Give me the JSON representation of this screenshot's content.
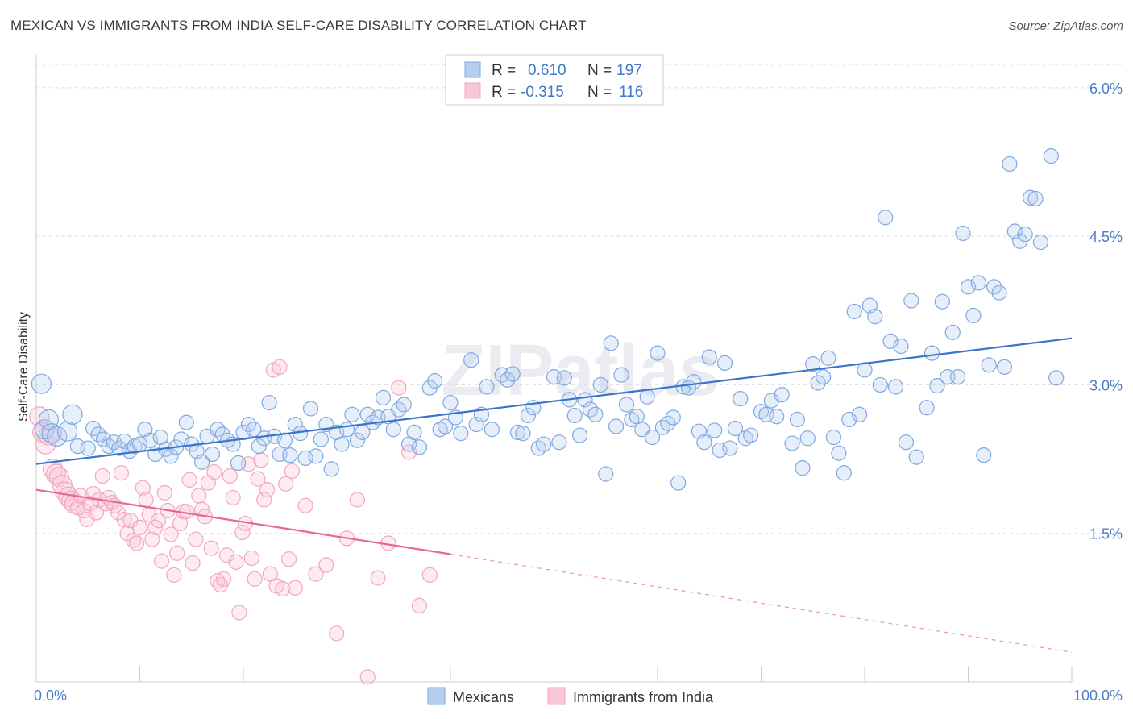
{
  "title": "MEXICAN VS IMMIGRANTS FROM INDIA SELF-CARE DISABILITY CORRELATION CHART",
  "source": "Source: ZipAtlas.com",
  "watermark": "ZIPatlas",
  "chart_data": {
    "type": "scatter",
    "title": "MEXICAN VS IMMIGRANTS FROM INDIA SELF-CARE DISABILITY CORRELATION CHART",
    "xlabel": "",
    "ylabel": "Self-Care Disability",
    "xlim": [
      0,
      100
    ],
    "ylim": [
      0,
      6.3
    ],
    "x_tick_labels": [
      "0.0%",
      "100.0%"
    ],
    "y_ticks": [
      1.5,
      3.0,
      4.5,
      6.0
    ],
    "y_tick_labels": [
      "1.5%",
      "3.0%",
      "4.5%",
      "6.0%"
    ],
    "grid": true,
    "legend_stats": [
      {
        "r_label": "R =",
        "r_value": "0.610",
        "n_label": "N =",
        "n_value": "197"
      },
      {
        "r_label": "R =",
        "r_value": "-0.315",
        "n_label": "N =",
        "n_value": "116"
      }
    ],
    "series": [
      {
        "name": "Mexicans",
        "color": "#7fa8e0",
        "line_color": "#3a74cc",
        "trend": {
          "x0": 0,
          "y0": 2.2,
          "x1": 100,
          "y1": 3.47
        },
        "points": [
          [
            0.5,
            3.01
          ],
          [
            0.8,
            2.55
          ],
          [
            1.2,
            2.65
          ],
          [
            1.5,
            2.51
          ],
          [
            2.0,
            2.48
          ],
          [
            3.0,
            2.53
          ],
          [
            3.5,
            2.7
          ],
          [
            4.0,
            2.38
          ],
          [
            5.0,
            2.36
          ],
          [
            5.5,
            2.56
          ],
          [
            6.0,
            2.5
          ],
          [
            6.5,
            2.45
          ],
          [
            7.0,
            2.38
          ],
          [
            7.5,
            2.42
          ],
          [
            8.0,
            2.36
          ],
          [
            8.5,
            2.43
          ],
          [
            9.0,
            2.33
          ],
          [
            9.5,
            2.38
          ],
          [
            10.0,
            2.4
          ],
          [
            10.5,
            2.55
          ],
          [
            11.0,
            2.44
          ],
          [
            11.5,
            2.3
          ],
          [
            12.0,
            2.47
          ],
          [
            12.5,
            2.35
          ],
          [
            13.0,
            2.28
          ],
          [
            13.5,
            2.37
          ],
          [
            14.0,
            2.45
          ],
          [
            14.5,
            2.62
          ],
          [
            15.0,
            2.4
          ],
          [
            15.5,
            2.33
          ],
          [
            16.0,
            2.22
          ],
          [
            16.5,
            2.48
          ],
          [
            17.0,
            2.3
          ],
          [
            17.5,
            2.55
          ],
          [
            18.0,
            2.5
          ],
          [
            18.5,
            2.44
          ],
          [
            19.0,
            2.4
          ],
          [
            19.5,
            2.21
          ],
          [
            20.0,
            2.52
          ],
          [
            20.5,
            2.6
          ],
          [
            21.0,
            2.55
          ],
          [
            21.5,
            2.38
          ],
          [
            22.0,
            2.46
          ],
          [
            22.5,
            2.82
          ],
          [
            23.0,
            2.48
          ],
          [
            23.5,
            2.3
          ],
          [
            24.0,
            2.44
          ],
          [
            24.5,
            2.29
          ],
          [
            25.0,
            2.6
          ],
          [
            25.5,
            2.51
          ],
          [
            26.0,
            2.26
          ],
          [
            26.5,
            2.76
          ],
          [
            27.0,
            2.28
          ],
          [
            27.5,
            2.45
          ],
          [
            28.0,
            2.6
          ],
          [
            28.5,
            2.15
          ],
          [
            29.0,
            2.52
          ],
          [
            29.5,
            2.4
          ],
          [
            30.0,
            2.55
          ],
          [
            30.5,
            2.7
          ],
          [
            31.0,
            2.44
          ],
          [
            31.5,
            2.52
          ],
          [
            32.0,
            2.7
          ],
          [
            32.5,
            2.62
          ],
          [
            33.0,
            2.67
          ],
          [
            33.5,
            2.87
          ],
          [
            34.0,
            2.68
          ],
          [
            34.5,
            2.55
          ],
          [
            35.0,
            2.75
          ],
          [
            35.5,
            2.8
          ],
          [
            36.0,
            2.4
          ],
          [
            36.5,
            2.52
          ],
          [
            37.0,
            2.37
          ],
          [
            38.0,
            2.97
          ],
          [
            38.5,
            3.04
          ],
          [
            39.0,
            2.55
          ],
          [
            39.5,
            2.58
          ],
          [
            40.0,
            2.82
          ],
          [
            40.5,
            2.67
          ],
          [
            41.0,
            2.51
          ],
          [
            42.0,
            3.25
          ],
          [
            42.5,
            2.6
          ],
          [
            43.0,
            2.7
          ],
          [
            43.5,
            2.98
          ],
          [
            44.0,
            2.55
          ],
          [
            45.0,
            3.1
          ],
          [
            45.5,
            3.05
          ],
          [
            46.0,
            3.11
          ],
          [
            46.5,
            2.52
          ],
          [
            47.0,
            2.51
          ],
          [
            47.5,
            2.69
          ],
          [
            48.0,
            2.77
          ],
          [
            48.5,
            2.36
          ],
          [
            49.0,
            2.4
          ],
          [
            50.0,
            3.08
          ],
          [
            50.5,
            2.42
          ],
          [
            51.0,
            3.07
          ],
          [
            51.5,
            2.85
          ],
          [
            52.0,
            2.69
          ],
          [
            52.5,
            2.49
          ],
          [
            53.0,
            2.85
          ],
          [
            53.5,
            2.75
          ],
          [
            54.0,
            2.7
          ],
          [
            54.5,
            3.0
          ],
          [
            55.0,
            2.1
          ],
          [
            55.5,
            3.42
          ],
          [
            56.0,
            2.58
          ],
          [
            56.5,
            3.1
          ],
          [
            57.0,
            2.8
          ],
          [
            57.5,
            2.65
          ],
          [
            58.0,
            2.68
          ],
          [
            58.5,
            2.55
          ],
          [
            59.0,
            2.88
          ],
          [
            59.5,
            2.47
          ],
          [
            60.0,
            3.32
          ],
          [
            60.5,
            2.57
          ],
          [
            61.0,
            2.61
          ],
          [
            61.5,
            2.67
          ],
          [
            62.0,
            2.01
          ],
          [
            62.5,
            2.98
          ],
          [
            63.0,
            2.97
          ],
          [
            63.5,
            3.03
          ],
          [
            64.0,
            2.53
          ],
          [
            64.5,
            2.42
          ],
          [
            65.0,
            3.28
          ],
          [
            65.5,
            2.54
          ],
          [
            66.0,
            2.34
          ],
          [
            66.5,
            3.22
          ],
          [
            67.0,
            2.36
          ],
          [
            67.5,
            2.56
          ],
          [
            68.0,
            2.86
          ],
          [
            68.5,
            2.46
          ],
          [
            69.0,
            2.49
          ],
          [
            70.0,
            2.73
          ],
          [
            70.5,
            2.7
          ],
          [
            71.0,
            2.84
          ],
          [
            71.5,
            2.68
          ],
          [
            72.0,
            2.9
          ],
          [
            73.0,
            2.41
          ],
          [
            73.5,
            2.65
          ],
          [
            74.0,
            2.16
          ],
          [
            74.5,
            2.46
          ],
          [
            75.0,
            3.21
          ],
          [
            75.5,
            3.02
          ],
          [
            76.0,
            3.08
          ],
          [
            76.5,
            3.27
          ],
          [
            77.0,
            2.47
          ],
          [
            77.5,
            2.31
          ],
          [
            78.0,
            2.11
          ],
          [
            78.5,
            2.65
          ],
          [
            79.0,
            3.74
          ],
          [
            79.5,
            2.7
          ],
          [
            80.0,
            3.15
          ],
          [
            80.5,
            3.8
          ],
          [
            81.0,
            3.69
          ],
          [
            81.5,
            3.0
          ],
          [
            82.0,
            4.69
          ],
          [
            82.5,
            3.44
          ],
          [
            83.0,
            2.98
          ],
          [
            83.5,
            3.39
          ],
          [
            84.0,
            2.42
          ],
          [
            84.5,
            3.85
          ],
          [
            85.0,
            2.27
          ],
          [
            86.0,
            2.77
          ],
          [
            86.5,
            3.32
          ],
          [
            87.0,
            2.99
          ],
          [
            87.5,
            3.84
          ],
          [
            88.0,
            3.08
          ],
          [
            88.5,
            3.53
          ],
          [
            89.0,
            3.08
          ],
          [
            89.5,
            4.53
          ],
          [
            90.0,
            3.99
          ],
          [
            90.5,
            3.7
          ],
          [
            91.0,
            4.03
          ],
          [
            91.5,
            2.29
          ],
          [
            92.0,
            3.2
          ],
          [
            92.5,
            3.99
          ],
          [
            93.0,
            3.93
          ],
          [
            93.5,
            3.18
          ],
          [
            94.0,
            5.23
          ],
          [
            94.5,
            4.55
          ],
          [
            95.0,
            4.45
          ],
          [
            95.5,
            4.52
          ],
          [
            96.0,
            4.89
          ],
          [
            96.5,
            4.88
          ],
          [
            97.0,
            4.44
          ],
          [
            98.0,
            5.31
          ],
          [
            98.5,
            3.07
          ]
        ]
      },
      {
        "name": "Immigrants from India",
        "color": "#f2a7bf",
        "line_color": "#e8679b",
        "trend": {
          "x0": 0,
          "y0": 1.94,
          "x1": 40,
          "y1": 1.29,
          "dash_x1": 100,
          "dash_y1": 0.3
        },
        "points": [
          [
            0.3,
            2.68
          ],
          [
            0.6,
            2.52
          ],
          [
            0.9,
            2.4
          ],
          [
            1.2,
            2.49
          ],
          [
            1.6,
            2.15
          ],
          [
            1.9,
            2.1
          ],
          [
            2.2,
            2.07
          ],
          [
            2.5,
            1.99
          ],
          [
            2.8,
            1.92
          ],
          [
            3.1,
            1.87
          ],
          [
            3.4,
            1.83
          ],
          [
            3.7,
            1.8
          ],
          [
            4.0,
            1.76
          ],
          [
            4.3,
            1.88
          ],
          [
            4.6,
            1.73
          ],
          [
            4.9,
            1.64
          ],
          [
            5.2,
            1.8
          ],
          [
            5.5,
            1.9
          ],
          [
            5.8,
            1.71
          ],
          [
            6.1,
            1.84
          ],
          [
            6.4,
            2.08
          ],
          [
            6.7,
            1.8
          ],
          [
            7.0,
            1.86
          ],
          [
            7.3,
            1.81
          ],
          [
            7.6,
            1.78
          ],
          [
            7.9,
            1.71
          ],
          [
            8.2,
            2.11
          ],
          [
            8.5,
            1.64
          ],
          [
            8.8,
            1.5
          ],
          [
            9.1,
            1.63
          ],
          [
            9.4,
            1.43
          ],
          [
            9.7,
            1.4
          ],
          [
            10.0,
            1.56
          ],
          [
            10.3,
            1.96
          ],
          [
            10.6,
            1.84
          ],
          [
            10.9,
            1.69
          ],
          [
            11.2,
            1.44
          ],
          [
            11.5,
            1.56
          ],
          [
            11.8,
            1.63
          ],
          [
            12.1,
            1.22
          ],
          [
            12.4,
            1.91
          ],
          [
            12.7,
            1.73
          ],
          [
            13.0,
            1.49
          ],
          [
            13.3,
            1.08
          ],
          [
            13.6,
            1.3
          ],
          [
            13.9,
            1.6
          ],
          [
            14.2,
            1.72
          ],
          [
            14.5,
            1.72
          ],
          [
            14.8,
            2.04
          ],
          [
            15.1,
            1.2
          ],
          [
            15.4,
            1.44
          ],
          [
            15.7,
            1.88
          ],
          [
            16.0,
            1.74
          ],
          [
            16.3,
            1.67
          ],
          [
            16.6,
            2.01
          ],
          [
            16.9,
            1.35
          ],
          [
            17.2,
            2.12
          ],
          [
            17.5,
            1.02
          ],
          [
            17.8,
            0.98
          ],
          [
            18.1,
            1.04
          ],
          [
            18.4,
            1.28
          ],
          [
            18.7,
            2.08
          ],
          [
            19.0,
            1.86
          ],
          [
            19.3,
            1.21
          ],
          [
            19.6,
            0.7
          ],
          [
            19.9,
            1.51
          ],
          [
            20.2,
            1.6
          ],
          [
            20.5,
            2.2
          ],
          [
            20.8,
            1.25
          ],
          [
            21.1,
            1.04
          ],
          [
            21.4,
            2.05
          ],
          [
            21.7,
            2.24
          ],
          [
            22.0,
            1.84
          ],
          [
            22.3,
            1.94
          ],
          [
            22.6,
            1.09
          ],
          [
            22.9,
            3.15
          ],
          [
            23.2,
            0.97
          ],
          [
            23.5,
            3.18
          ],
          [
            23.8,
            0.94
          ],
          [
            24.1,
            2.0
          ],
          [
            24.4,
            1.24
          ],
          [
            24.7,
            2.13
          ],
          [
            25.0,
            0.95
          ],
          [
            26.0,
            1.78
          ],
          [
            27.0,
            1.09
          ],
          [
            28.0,
            1.18
          ],
          [
            29.0,
            0.49
          ],
          [
            30.0,
            1.45
          ],
          [
            31.0,
            1.84
          ],
          [
            32.0,
            0.05
          ],
          [
            33.0,
            1.05
          ],
          [
            34.0,
            1.4
          ],
          [
            35.0,
            2.97
          ],
          [
            36.0,
            2.32
          ],
          [
            37.0,
            0.77
          ],
          [
            38.0,
            1.08
          ]
        ]
      }
    ]
  }
}
